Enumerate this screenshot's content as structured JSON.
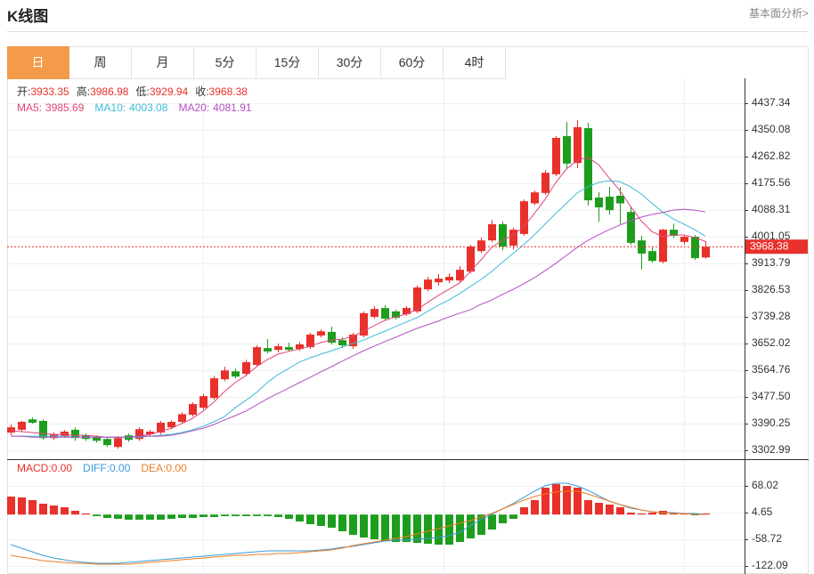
{
  "header": {
    "title": "K线图",
    "link": "基本面分析>"
  },
  "tabs": [
    "日",
    "周",
    "月",
    "5分",
    "15分",
    "30分",
    "60分",
    "4时"
  ],
  "active_tab": 0,
  "chart_data": [
    {
      "type": "candlestick",
      "up_color": "#e8312a",
      "down_color": "#1c9e1c",
      "ohlc_labels": [
        "开:",
        "高:",
        "低:",
        "收:"
      ],
      "open": [
        3361,
        3370,
        3404,
        3399,
        3343,
        3349,
        3370,
        3352,
        3346,
        3340,
        3314,
        3352,
        3340,
        3355,
        3361,
        3378,
        3396,
        3419,
        3442,
        3474,
        3535,
        3561,
        3553,
        3582,
        3637,
        3631,
        3640,
        3634,
        3640,
        3678,
        3690,
        3663,
        3643,
        3678,
        3739,
        3768,
        3757,
        3748,
        3757,
        3829,
        3852,
        3858,
        3858,
        3887,
        3954,
        3989,
        4042,
        3972,
        4010,
        4110,
        4144,
        4205,
        4330,
        4242,
        4356,
        4129,
        4132,
        4135,
        4082,
        3989,
        3954,
        3919,
        4024,
        3984,
        4001,
        3933.35
      ],
      "high": [
        3387,
        3399,
        3410,
        3404,
        3361,
        3369,
        3378,
        3358,
        3352,
        3346,
        3349,
        3358,
        3378,
        3369,
        3399,
        3401,
        3427,
        3460,
        3486,
        3546,
        3576,
        3570,
        3599,
        3646,
        3666,
        3652,
        3655,
        3657,
        3687,
        3698,
        3707,
        3672,
        3687,
        3757,
        3774,
        3777,
        3763,
        3774,
        3841,
        3870,
        3879,
        3881,
        3905,
        3975,
        3998,
        4056,
        4051,
        4030,
        4123,
        4152,
        4219,
        4330,
        4376,
        4382,
        4373,
        4147,
        4164,
        4164,
        4100,
        4004,
        3966,
        4027,
        4044,
        4007,
        4007,
        3986.98
      ],
      "low": [
        3352,
        3364,
        3390,
        3337,
        3337,
        3343,
        3334,
        3334,
        3328,
        3314,
        3308,
        3331,
        3334,
        3349,
        3355,
        3372,
        3390,
        3413,
        3436,
        3468,
        3529,
        3538,
        3547,
        3576,
        3620,
        3623,
        3625,
        3628,
        3634,
        3672,
        3649,
        3637,
        3634,
        3672,
        3733,
        3727,
        3730,
        3742,
        3751,
        3823,
        3841,
        3849,
        3852,
        3881,
        3948,
        3983,
        3957,
        3960,
        4004,
        4104,
        4138,
        4199,
        4225,
        4225,
        4103,
        4050,
        4073,
        4042,
        3975,
        3894,
        3916,
        3914,
        3998,
        3975,
        3925,
        3929.94
      ],
      "close": [
        3378,
        3396,
        3393,
        3343,
        3355,
        3364,
        3343,
        3340,
        3334,
        3320,
        3343,
        3337,
        3372,
        3364,
        3393,
        3396,
        3421,
        3454,
        3480,
        3538,
        3564,
        3544,
        3591,
        3640,
        3626,
        3643,
        3631,
        3649,
        3681,
        3692,
        3655,
        3646,
        3681,
        3751,
        3765,
        3733,
        3736,
        3768,
        3835,
        3861,
        3864,
        3870,
        3893,
        3969,
        3989,
        4042,
        3969,
        4024,
        4117,
        4146,
        4210,
        4324,
        4240,
        4359,
        4120,
        4097,
        4088,
        4110,
        3981,
        3946,
        3922,
        4024,
        4004,
        4001,
        3931,
        3968.38
      ],
      "lines": [
        {
          "name": "MA5:",
          "color": "#e2457a",
          "values": [
            3367,
            3364,
            3361,
            3358,
            3355,
            3355,
            3352,
            3352,
            3349,
            3346,
            3346,
            3346,
            3349,
            3355,
            3364,
            3375,
            3390,
            3407,
            3431,
            3460,
            3495,
            3524,
            3547,
            3576,
            3599,
            3617,
            3626,
            3634,
            3643,
            3655,
            3663,
            3666,
            3675,
            3692,
            3710,
            3727,
            3739,
            3748,
            3762,
            3786,
            3809,
            3829,
            3850,
            3887,
            3925,
            3966,
            3989,
            4007,
            4033,
            4077,
            4123,
            4178,
            4222,
            4251,
            4260,
            4237,
            4193,
            4152,
            4100,
            4053,
            4018,
            4001,
            4007,
            4007,
            3998,
            3985.69
          ]
        },
        {
          "name": "MA10:",
          "color": "#3bbcd6",
          "values": [
            3349,
            3349,
            3349,
            3349,
            3349,
            3349,
            3346,
            3346,
            3346,
            3346,
            3346,
            3346,
            3346,
            3349,
            3352,
            3355,
            3361,
            3370,
            3381,
            3396,
            3413,
            3442,
            3466,
            3492,
            3524,
            3550,
            3570,
            3591,
            3605,
            3617,
            3628,
            3640,
            3652,
            3663,
            3678,
            3692,
            3707,
            3722,
            3736,
            3757,
            3777,
            3794,
            3815,
            3838,
            3861,
            3887,
            3917,
            3946,
            3975,
            4007,
            4042,
            4077,
            4110,
            4144,
            4164,
            4178,
            4184,
            4181,
            4164,
            4141,
            4110,
            4082,
            4059,
            4042,
            4024,
            4003.08
          ]
        },
        {
          "name": "MA20:",
          "color": "#b24fc2",
          "values": [
            3349,
            3349,
            3346,
            3346,
            3346,
            3346,
            3346,
            3346,
            3346,
            3346,
            3346,
            3346,
            3349,
            3349,
            3349,
            3352,
            3358,
            3367,
            3375,
            3387,
            3402,
            3416,
            3431,
            3451,
            3471,
            3489,
            3506,
            3524,
            3541,
            3559,
            3576,
            3594,
            3611,
            3628,
            3643,
            3658,
            3672,
            3687,
            3701,
            3713,
            3725,
            3739,
            3751,
            3762,
            3780,
            3794,
            3812,
            3829,
            3847,
            3867,
            3890,
            3914,
            3940,
            3966,
            3989,
            4007,
            4024,
            4039,
            4053,
            4065,
            4074,
            4080,
            4088,
            4091,
            4088,
            4081.91
          ]
        }
      ],
      "ylim": [
        3273.84,
        4518.78
      ],
      "yticks": [
        4437.34,
        4350.08,
        4262.82,
        4175.56,
        4088.31,
        4001.05,
        3913.79,
        3826.53,
        3739.28,
        3652.02,
        3564.76,
        {
          "value": 3477.5,
          "label": "3477.50"
        },
        3390.25,
        3302.99
      ],
      "grid": true
    },
    {
      "type": "macd",
      "series": [
        {
          "name": "MACD:",
          "value_label": "0.00",
          "type": "bar",
          "color": "#e8312a",
          "up_color": "#e8312a",
          "down_color": "#1c9e1c",
          "values": [
            42.7,
            40.6,
            34.2,
            25.8,
            21.5,
            17.3,
            8.9,
            2.5,
            -3.8,
            -8.0,
            -10.1,
            -12.2,
            -12.2,
            -12.2,
            -12.2,
            -10.1,
            -8.0,
            -8.0,
            -5.9,
            -5.9,
            -3.8,
            -3.8,
            -3.8,
            -3.8,
            -3.8,
            -5.9,
            -10.1,
            -16.5,
            -22.8,
            -27.0,
            -31.2,
            -39.7,
            -48.1,
            -54.5,
            -58.7,
            -62.9,
            -65.1,
            -65.1,
            -67.2,
            -69.3,
            -71.4,
            -71.4,
            -65.1,
            -56.6,
            -48.1,
            -35.5,
            -20.7,
            -10.1,
            17.3,
            34.2,
            63.8,
            72.2,
            68.0,
            63.8,
            34.2,
            27.9,
            23.7,
            17.3,
            4.6,
            2.5,
            4.6,
            8.9,
            4.6,
            2.5,
            -1.7,
            2.5
          ]
        },
        {
          "name": "DIFF:",
          "value_label": "0.00",
          "type": "line",
          "color": "#3a9ad9",
          "values": [
            -71.4,
            -79.9,
            -88.3,
            -96.8,
            -103.1,
            -107.3,
            -111.6,
            -113.7,
            -115.8,
            -115.8,
            -115.8,
            -113.7,
            -111.6,
            -109.4,
            -107.3,
            -105.2,
            -103.1,
            -101.0,
            -98.9,
            -96.8,
            -94.6,
            -92.5,
            -90.4,
            -88.3,
            -86.2,
            -86.2,
            -86.2,
            -86.2,
            -86.2,
            -84.1,
            -82.0,
            -77.8,
            -75.6,
            -71.4,
            -67.2,
            -62.9,
            -60.8,
            -60.8,
            -58.7,
            -56.6,
            -54.5,
            -50.3,
            -41.8,
            -27.0,
            -12.2,
            0.5,
            13.1,
            25.8,
            40.6,
            55.4,
            68.0,
            74.3,
            74.3,
            68.0,
            57.5,
            44.8,
            32.1,
            23.7,
            15.2,
            11.0,
            6.8,
            4.6,
            4.6,
            2.5,
            2.5,
            0.5
          ]
        },
        {
          "name": "DEA:",
          "value_label": "0.00",
          "type": "line",
          "color": "#ef7d22",
          "values": [
            -96.8,
            -101.0,
            -105.2,
            -109.4,
            -111.6,
            -113.7,
            -115.8,
            -115.8,
            -117.9,
            -117.9,
            -117.9,
            -117.9,
            -115.8,
            -113.7,
            -111.6,
            -109.4,
            -107.3,
            -105.2,
            -103.1,
            -101.0,
            -98.9,
            -96.8,
            -96.8,
            -94.6,
            -94.6,
            -92.5,
            -92.5,
            -90.4,
            -88.3,
            -86.2,
            -84.1,
            -79.9,
            -73.5,
            -69.3,
            -65.1,
            -60.8,
            -56.6,
            -52.4,
            -46.0,
            -39.7,
            -33.4,
            -27.0,
            -20.7,
            -14.4,
            -5.9,
            2.5,
            13.1,
            23.7,
            34.2,
            42.7,
            49.0,
            53.2,
            55.4,
            55.4,
            49.0,
            40.6,
            32.1,
            23.7,
            17.3,
            11.0,
            6.8,
            4.6,
            2.5,
            2.5,
            0.5,
            0.5
          ]
        }
      ],
      "ylim": [
        -141.1,
        129.3
      ],
      "yticks": [
        68.02,
        4.65,
        -58.72,
        -122.09
      ],
      "grid": true
    }
  ]
}
